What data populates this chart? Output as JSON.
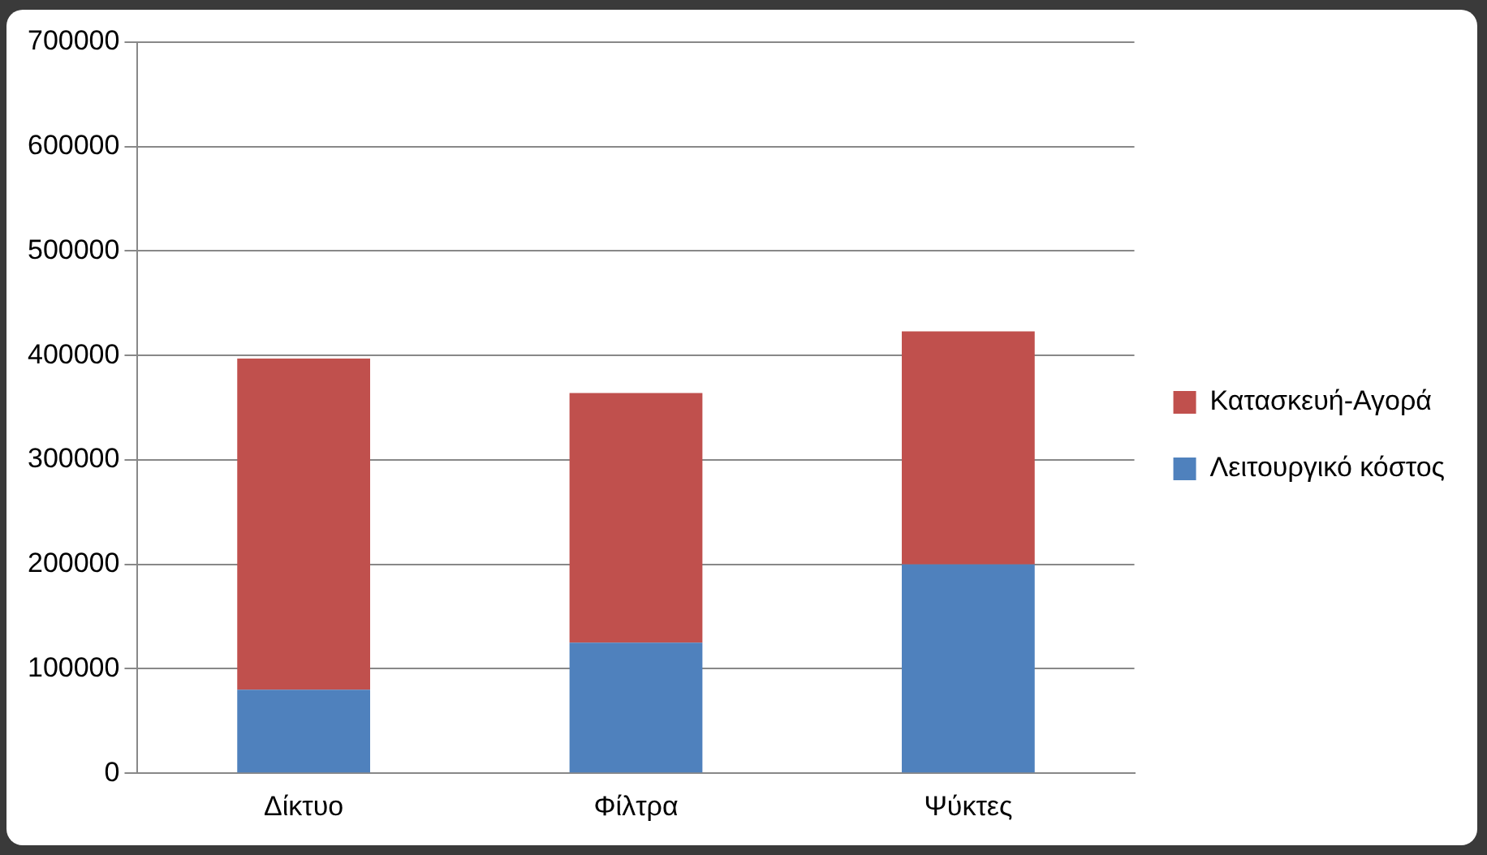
{
  "chart_data": {
    "type": "bar",
    "stacked": true,
    "categories": [
      "Δίκτυο",
      "Φίλτρα",
      "Ψύκτες"
    ],
    "series": [
      {
        "name": "Λειτουργικό κόστος",
        "color": "#4f81bd",
        "values": [
          80000,
          125000,
          200000
        ]
      },
      {
        "name": "Κατασκευή-Αγορά",
        "color": "#c0504d",
        "values": [
          317000,
          239000,
          223000
        ]
      }
    ],
    "ylim": [
      0,
      700000
    ],
    "yticks": [
      0,
      100000,
      200000,
      300000,
      400000,
      500000,
      600000,
      700000
    ],
    "grid": "y",
    "legend": "right"
  }
}
